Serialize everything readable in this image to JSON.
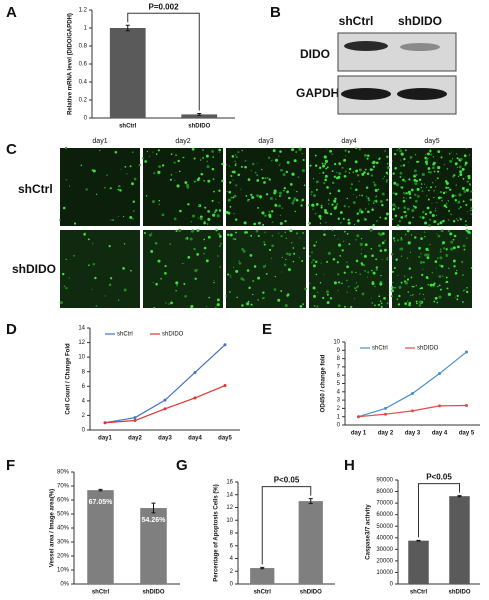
{
  "panels": [
    "A",
    "B",
    "C",
    "D",
    "E",
    "F",
    "G",
    "H"
  ],
  "blot": {
    "lanes": [
      "shCtrl",
      "shDIDO"
    ],
    "rows": [
      "DIDO",
      "GAPDH"
    ]
  },
  "microscopy": {
    "columns": [
      "day1",
      "day2",
      "day3",
      "day4",
      "day5"
    ],
    "rows": [
      "shCtrl",
      "shDIDO"
    ]
  },
  "chart_data": [
    {
      "type": "bar",
      "ylabel": "Relative mRNA level (DIDO/GAPDH)",
      "categories": [
        "shCtrl",
        "shDIDO"
      ],
      "values": [
        1.0,
        0.04
      ],
      "errors": [
        0.03,
        0.01
      ],
      "color": "#5a5a5a",
      "ylim": [
        0,
        1.2
      ],
      "yticks": [
        0,
        0.2,
        0.4,
        0.6,
        0.8,
        1,
        1.2
      ],
      "annotation": "P=0.002"
    },
    {
      "type": "line",
      "ylabel": "Cell Count / Change Fold",
      "categories": [
        "day1",
        "day2",
        "day3",
        "day4",
        "day5"
      ],
      "series": [
        {
          "name": "shCtrl",
          "color": "#4472c4",
          "values": [
            1,
            1.7,
            4.1,
            7.9,
            11.7
          ]
        },
        {
          "name": "shDIDO",
          "color": "#d9372f",
          "values": [
            1,
            1.3,
            2.9,
            4.4,
            6.1
          ]
        }
      ],
      "ylim": [
        0,
        14
      ],
      "yticks": [
        0,
        2,
        4,
        6,
        8,
        10,
        12,
        14
      ]
    },
    {
      "type": "line",
      "ylabel": "OD450 / change fold",
      "categories": [
        "day 1",
        "day 2",
        "day 3",
        "day 4",
        "day 5"
      ],
      "series": [
        {
          "name": "shCtrl",
          "color": "#4a90c8",
          "values": [
            1,
            2,
            3.8,
            6.2,
            8.8
          ]
        },
        {
          "name": "shDIDO",
          "color": "#d9504a",
          "values": [
            1,
            1.3,
            1.7,
            2.3,
            2.35
          ]
        }
      ],
      "ylim": [
        0,
        10
      ],
      "yticks": [
        0,
        1,
        2,
        3,
        4,
        5,
        6,
        7,
        8,
        9,
        10
      ]
    },
    {
      "type": "bar",
      "ylabel": "Vessel area / Image area(%)",
      "categories": [
        "shCtrl",
        "shDIDO"
      ],
      "values": [
        67.05,
        54.26
      ],
      "value_labels": [
        "67.05%",
        "54.26%"
      ],
      "errors": [
        0.5,
        3.5
      ],
      "color": "#7f7f7f",
      "ylim": [
        0,
        80
      ],
      "yticks": [
        {
          "value": 0,
          "label": "0%"
        },
        {
          "value": 10,
          "label": "10%"
        },
        {
          "value": 20,
          "label": "20%"
        },
        {
          "value": 30,
          "label": "30%"
        },
        {
          "value": 40,
          "label": "40%"
        },
        {
          "value": 50,
          "label": "50%"
        },
        {
          "value": 60,
          "label": "60%"
        },
        {
          "value": 70,
          "label": "70%"
        },
        {
          "value": 80,
          "label": "80%"
        }
      ]
    },
    {
      "type": "bar",
      "ylabel": "Percentage of Apoptosis Cells (%)",
      "categories": [
        "shCtrl",
        "shDIDO"
      ],
      "values": [
        2.5,
        13
      ],
      "errors": [
        0.1,
        0.4
      ],
      "color": "#7f7f7f",
      "ylim": [
        0,
        16
      ],
      "yticks": [
        0,
        2,
        4,
        6,
        8,
        10,
        12,
        14,
        16
      ],
      "annotation": "P<0.05"
    },
    {
      "type": "bar",
      "ylabel": "Caspase3/7 activity",
      "categories": [
        "shCtrl",
        "shDIDO"
      ],
      "values": [
        37500,
        76000
      ],
      "errors": [
        300,
        500
      ],
      "color": "#5a5a5a",
      "ylim": [
        0,
        90000
      ],
      "yticks": [
        0,
        10000,
        20000,
        30000,
        40000,
        50000,
        60000,
        70000,
        80000,
        90000
      ],
      "annotation": "P<0.05"
    }
  ]
}
